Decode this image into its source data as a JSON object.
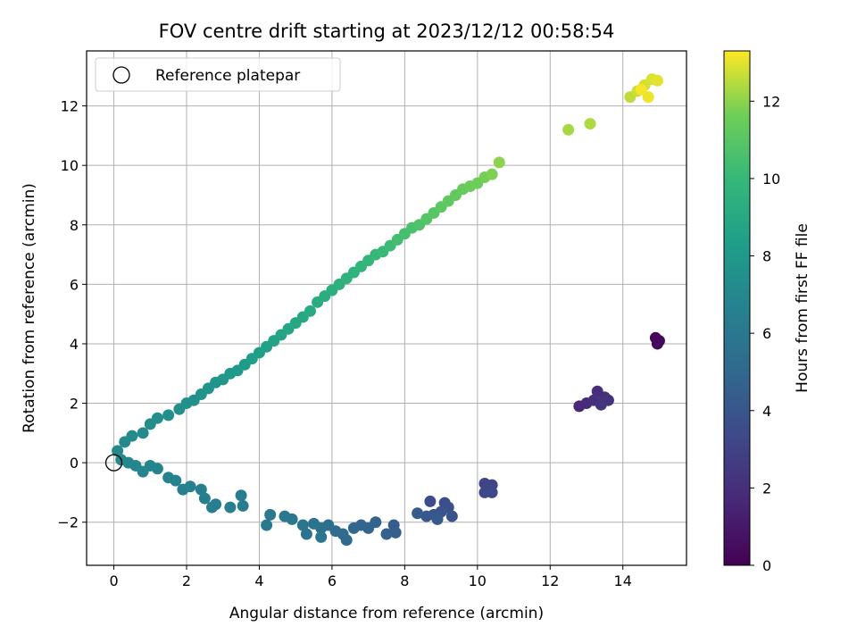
{
  "chart_data": {
    "type": "scatter",
    "title": "FOV centre drift starting at 2023/12/12 00:58:54",
    "xlabel": "Angular distance from reference (arcmin)",
    "ylabel": "Rotation from reference (arcmin)",
    "colorbar_label": "Hours from first FF file",
    "xlim": [
      -0.75,
      15.75
    ],
    "ylim": [
      -3.45,
      13.85
    ],
    "xticks": [
      0,
      2,
      4,
      6,
      8,
      10,
      12,
      14
    ],
    "yticks": [
      -2,
      0,
      2,
      4,
      6,
      8,
      10,
      12
    ],
    "colorbar_range": [
      0,
      13.3
    ],
    "colorbar_ticks": [
      0,
      2,
      4,
      6,
      8,
      10,
      12
    ],
    "colormap": "viridis",
    "grid": true,
    "legend": {
      "placement": "top-left",
      "entries": [
        {
          "label": "Reference platepar",
          "marker": "open-circle",
          "x": 0,
          "y": 0
        }
      ]
    },
    "series": [
      {
        "points": [
          [
            14.9,
            4.2,
            0.2
          ],
          [
            15.0,
            4.1,
            0.3
          ],
          [
            14.95,
            4.0,
            0.4
          ],
          [
            12.8,
            1.9,
            1.6
          ],
          [
            13.0,
            2.0,
            1.8
          ],
          [
            13.3,
            2.4,
            1.9
          ],
          [
            13.5,
            2.2,
            2.0
          ],
          [
            13.2,
            2.1,
            2.1
          ],
          [
            13.6,
            2.1,
            2.2
          ],
          [
            13.4,
            1.95,
            2.3
          ],
          [
            10.2,
            -0.7,
            3.0
          ],
          [
            10.4,
            -0.75,
            3.1
          ],
          [
            10.2,
            -1.0,
            3.2
          ],
          [
            10.4,
            -1.0,
            3.3
          ],
          [
            8.7,
            -1.3,
            3.5
          ],
          [
            9.1,
            -1.35,
            3.6
          ],
          [
            9.2,
            -1.5,
            3.7
          ],
          [
            9.3,
            -1.8,
            3.8
          ],
          [
            9.0,
            -1.65,
            3.9
          ],
          [
            8.8,
            -1.75,
            4.0
          ],
          [
            8.6,
            -1.8,
            4.1
          ],
          [
            8.9,
            -1.9,
            4.2
          ],
          [
            8.35,
            -1.7,
            4.3
          ],
          [
            7.7,
            -2.1,
            4.4
          ],
          [
            7.75,
            -2.35,
            4.5
          ],
          [
            7.5,
            -2.4,
            4.6
          ],
          [
            7.2,
            -2.0,
            4.7
          ],
          [
            7.0,
            -2.2,
            4.8
          ],
          [
            6.8,
            -2.1,
            4.9
          ],
          [
            6.6,
            -2.2,
            5.0
          ],
          [
            6.4,
            -2.6,
            5.1
          ],
          [
            6.3,
            -2.4,
            5.2
          ],
          [
            6.1,
            -2.3,
            5.3
          ],
          [
            5.9,
            -2.1,
            5.4
          ],
          [
            5.7,
            -2.2,
            5.5
          ],
          [
            5.5,
            -2.05,
            5.6
          ],
          [
            5.3,
            -2.4,
            5.7
          ],
          [
            5.2,
            -2.1,
            5.8
          ],
          [
            5.7,
            -2.5,
            5.9
          ],
          [
            4.9,
            -1.9,
            6.0
          ],
          [
            4.7,
            -1.8,
            6.05
          ],
          [
            4.3,
            -1.75,
            6.1
          ],
          [
            4.2,
            -2.1,
            6.15
          ],
          [
            3.5,
            -1.1,
            6.2
          ],
          [
            3.55,
            -1.45,
            6.25
          ],
          [
            3.2,
            -1.5,
            6.3
          ],
          [
            2.8,
            -1.4,
            6.35
          ],
          [
            2.7,
            -1.5,
            6.4
          ],
          [
            2.5,
            -1.2,
            6.45
          ],
          [
            2.4,
            -0.9,
            6.5
          ],
          [
            2.1,
            -0.8,
            6.55
          ],
          [
            1.9,
            -0.9,
            6.6
          ],
          [
            1.7,
            -0.6,
            6.65
          ],
          [
            1.5,
            -0.5,
            6.7
          ],
          [
            1.2,
            -0.2,
            6.75
          ],
          [
            1.0,
            -0.1,
            6.8
          ],
          [
            0.8,
            -0.3,
            6.85
          ],
          [
            0.6,
            -0.1,
            6.9
          ],
          [
            0.4,
            0.0,
            6.95
          ],
          [
            0.2,
            0.1,
            7.0
          ],
          [
            0.1,
            0.4,
            7.05
          ],
          [
            0.3,
            0.7,
            7.1
          ],
          [
            0.5,
            0.9,
            7.15
          ],
          [
            0.8,
            1.0,
            7.2
          ],
          [
            1.0,
            1.3,
            7.3
          ],
          [
            1.2,
            1.5,
            7.35
          ],
          [
            1.5,
            1.6,
            7.4
          ],
          [
            1.8,
            1.8,
            7.45
          ],
          [
            2.0,
            2.0,
            7.5
          ],
          [
            2.2,
            2.1,
            7.55
          ],
          [
            2.4,
            2.3,
            7.6
          ],
          [
            2.6,
            2.5,
            7.7
          ],
          [
            2.8,
            2.7,
            7.8
          ],
          [
            3.0,
            2.8,
            7.9
          ],
          [
            3.2,
            3.0,
            8.0
          ],
          [
            3.4,
            3.1,
            8.1
          ],
          [
            3.6,
            3.3,
            8.2
          ],
          [
            3.8,
            3.5,
            8.3
          ],
          [
            4.0,
            3.7,
            8.4
          ],
          [
            4.2,
            3.9,
            8.5
          ],
          [
            4.4,
            4.1,
            8.6
          ],
          [
            4.6,
            4.3,
            8.7
          ],
          [
            4.8,
            4.5,
            8.8
          ],
          [
            5.0,
            4.7,
            8.9
          ],
          [
            5.2,
            4.9,
            9.0
          ],
          [
            5.4,
            5.1,
            9.1
          ],
          [
            5.6,
            5.4,
            9.2
          ],
          [
            5.8,
            5.6,
            9.3
          ],
          [
            6.0,
            5.8,
            9.4
          ],
          [
            6.2,
            6.0,
            9.5
          ],
          [
            6.4,
            6.2,
            9.6
          ],
          [
            6.6,
            6.4,
            9.7
          ],
          [
            6.8,
            6.6,
            9.8
          ],
          [
            7.0,
            6.8,
            9.9
          ],
          [
            7.2,
            7.0,
            10.0
          ],
          [
            7.4,
            7.1,
            10.1
          ],
          [
            7.6,
            7.3,
            10.2
          ],
          [
            7.8,
            7.5,
            10.4
          ],
          [
            8.0,
            7.7,
            10.5
          ],
          [
            8.2,
            7.9,
            10.6
          ],
          [
            8.4,
            8.0,
            10.8
          ],
          [
            8.6,
            8.2,
            10.9
          ],
          [
            8.8,
            8.4,
            11.0
          ],
          [
            9.0,
            8.6,
            11.1
          ],
          [
            9.2,
            8.8,
            11.2
          ],
          [
            9.4,
            9.0,
            11.3
          ],
          [
            9.6,
            9.2,
            11.4
          ],
          [
            9.8,
            9.3,
            11.5
          ],
          [
            10.0,
            9.4,
            11.6
          ],
          [
            10.2,
            9.6,
            11.7
          ],
          [
            10.4,
            9.7,
            11.8
          ],
          [
            10.6,
            10.1,
            12.0
          ],
          [
            12.5,
            11.2,
            12.3
          ],
          [
            13.1,
            11.4,
            12.4
          ],
          [
            14.2,
            12.3,
            12.6
          ],
          [
            14.4,
            12.5,
            12.7
          ],
          [
            14.6,
            12.7,
            12.8
          ],
          [
            14.8,
            12.9,
            12.9
          ],
          [
            14.95,
            12.85,
            13.0
          ],
          [
            14.7,
            12.3,
            13.1
          ],
          [
            14.5,
            12.55,
            13.2
          ]
        ]
      }
    ]
  }
}
